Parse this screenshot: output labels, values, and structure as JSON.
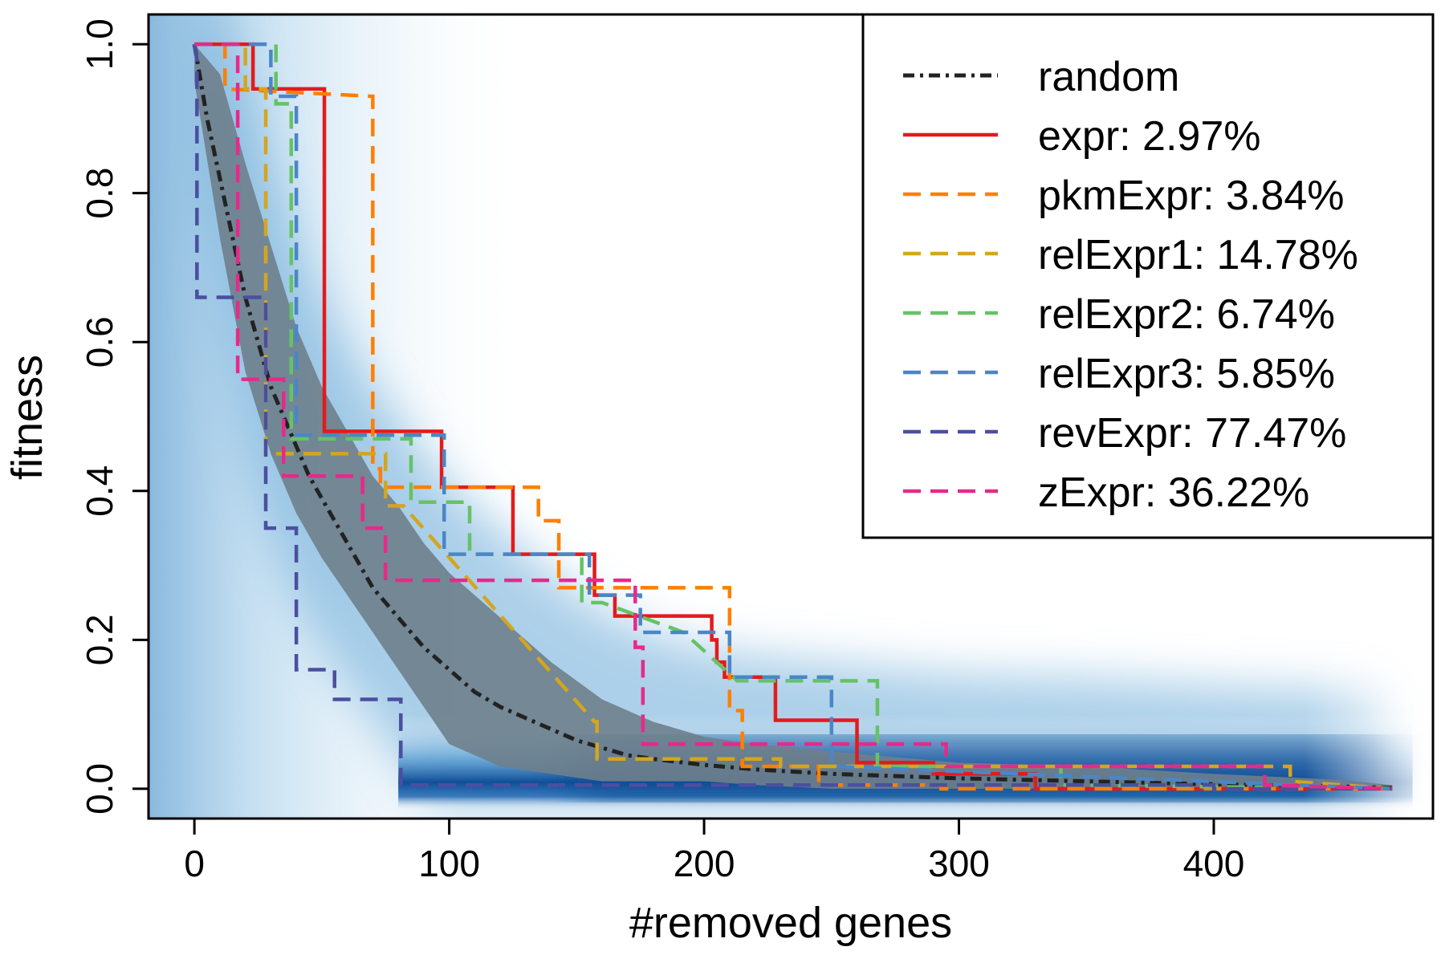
{
  "chart_data": {
    "type": "line",
    "xlabel": "#removed genes",
    "ylabel": "fitness",
    "xlim": [
      -18,
      486
    ],
    "ylim": [
      -0.04,
      1.04
    ],
    "x_ticks": [
      0,
      100,
      200,
      300,
      400
    ],
    "x_tick_labels": [
      "0",
      "100",
      "200",
      "300",
      "400"
    ],
    "y_ticks": [
      0,
      0.2,
      0.4,
      0.6,
      0.8,
      1.0
    ],
    "y_tick_labels": [
      "0.0",
      "0.2",
      "0.4",
      "0.6",
      "0.8",
      "1.0"
    ],
    "grid": false,
    "legend_position": "top-right",
    "background": "density heatmap of random removal trajectories (blue, dark near fitness 0)",
    "random_band": {
      "x": [
        0,
        10,
        20,
        30,
        40,
        50,
        60,
        70,
        80,
        90,
        100,
        120,
        140,
        160,
        180,
        200,
        220,
        250,
        300,
        350,
        400,
        450,
        470
      ],
      "lower": [
        0.95,
        0.74,
        0.56,
        0.45,
        0.37,
        0.31,
        0.26,
        0.21,
        0.16,
        0.11,
        0.06,
        0.03,
        0.02,
        0.01,
        0.01,
        0.01,
        0.005,
        0.0,
        0.0,
        0.0,
        0.0,
        0.0,
        0.0
      ],
      "upper": [
        1.0,
        0.96,
        0.84,
        0.73,
        0.62,
        0.54,
        0.48,
        0.42,
        0.38,
        0.33,
        0.29,
        0.23,
        0.17,
        0.12,
        0.09,
        0.07,
        0.06,
        0.05,
        0.035,
        0.03,
        0.02,
        0.012,
        0.005
      ]
    },
    "series": [
      {
        "name": "random",
        "color": "#222222",
        "style": "dashdot",
        "x": [
          0,
          5,
          10,
          15,
          20,
          25,
          30,
          35,
          40,
          45,
          50,
          55,
          60,
          65,
          70,
          80,
          90,
          100,
          110,
          120,
          130,
          140,
          150,
          160,
          170,
          180,
          200,
          220,
          250,
          300,
          350,
          400,
          450,
          470
        ],
        "y": [
          1.0,
          0.9,
          0.82,
          0.74,
          0.66,
          0.6,
          0.54,
          0.5,
          0.46,
          0.42,
          0.39,
          0.36,
          0.33,
          0.3,
          0.27,
          0.23,
          0.19,
          0.16,
          0.13,
          0.11,
          0.095,
          0.08,
          0.065,
          0.055,
          0.045,
          0.04,
          0.032,
          0.026,
          0.02,
          0.014,
          0.01,
          0.006,
          0.003,
          0.001
        ]
      },
      {
        "name": "expr: 2.97%",
        "color": "#e41a1c",
        "style": "solid",
        "x": [
          0,
          23,
          23,
          51,
          51,
          97,
          97,
          125,
          125,
          157,
          157,
          165,
          165,
          203,
          203,
          205,
          205,
          208,
          208,
          217,
          217,
          228,
          228,
          239,
          239,
          260,
          260,
          290,
          290,
          330,
          330,
          470
        ],
        "y": [
          1.0,
          1.0,
          0.94,
          0.94,
          0.48,
          0.48,
          0.405,
          0.405,
          0.315,
          0.315,
          0.26,
          0.26,
          0.232,
          0.232,
          0.2,
          0.2,
          0.17,
          0.17,
          0.15,
          0.15,
          0.15,
          0.15,
          0.092,
          0.092,
          0.092,
          0.092,
          0.035,
          0.035,
          0.02,
          0.02,
          0.0,
          0.0
        ]
      },
      {
        "name": "pkmExpr: 3.84%",
        "color": "#ff7f00",
        "style": "dashed",
        "x": [
          0,
          12,
          12,
          70,
          70,
          73,
          73,
          135,
          135,
          143,
          143,
          210,
          210,
          215,
          215,
          245,
          245,
          293,
          293,
          470
        ],
        "y": [
          1.0,
          1.0,
          0.94,
          0.93,
          0.43,
          0.43,
          0.405,
          0.405,
          0.36,
          0.36,
          0.27,
          0.27,
          0.105,
          0.105,
          0.03,
          0.03,
          0.005,
          0.005,
          0.0,
          0.0
        ]
      },
      {
        "name": "relExpr1: 14.78%",
        "color": "#d4a520",
        "style": "dashed",
        "x": [
          0,
          20,
          20,
          28,
          28,
          75,
          75,
          82,
          82,
          157,
          157,
          158,
          158,
          230,
          230,
          430,
          430,
          470
        ],
        "y": [
          1.0,
          1.0,
          0.94,
          0.94,
          0.45,
          0.45,
          0.38,
          0.38,
          0.38,
          0.09,
          0.09,
          0.09,
          0.04,
          0.04,
          0.03,
          0.03,
          0.01,
          0.0
        ]
      },
      {
        "name": "relExpr2: 6.74%",
        "color": "#66c266",
        "style": "dashed",
        "x": [
          0,
          32,
          32,
          38,
          38,
          85,
          85,
          108,
          108,
          152,
          152,
          160,
          160,
          192,
          192,
          213,
          213,
          268,
          268,
          340,
          340,
          470
        ],
        "y": [
          1.0,
          1.0,
          0.92,
          0.92,
          0.47,
          0.47,
          0.385,
          0.385,
          0.315,
          0.315,
          0.25,
          0.25,
          0.25,
          0.21,
          0.21,
          0.145,
          0.145,
          0.145,
          0.03,
          0.03,
          0.005,
          0.0
        ]
      },
      {
        "name": "relExpr3: 5.85%",
        "color": "#4a86c8",
        "style": "dashed",
        "x": [
          0,
          30,
          30,
          40,
          40,
          98,
          98,
          155,
          155,
          175,
          175,
          210,
          210,
          250,
          250,
          470
        ],
        "y": [
          1.0,
          1.0,
          0.93,
          0.93,
          0.475,
          0.475,
          0.315,
          0.315,
          0.26,
          0.26,
          0.21,
          0.21,
          0.15,
          0.15,
          0.03,
          0.0
        ]
      },
      {
        "name": "revExpr: 77.47%",
        "color": "#4b4fa0",
        "style": "dashed",
        "x": [
          0,
          1,
          1,
          9,
          9,
          28,
          28,
          40,
          40,
          55,
          55,
          81,
          81,
          400,
          400,
          470
        ],
        "y": [
          1.0,
          0.98,
          0.66,
          0.66,
          0.66,
          0.66,
          0.35,
          0.35,
          0.16,
          0.16,
          0.12,
          0.12,
          0.005,
          0.005,
          0.0,
          0.0
        ]
      },
      {
        "name": "zExpr: 36.22%",
        "color": "#e7298a",
        "style": "dashed",
        "x": [
          0,
          17,
          17,
          35,
          35,
          66,
          66,
          75,
          75,
          173,
          173,
          176,
          176,
          295,
          295,
          420,
          420,
          470
        ],
        "y": [
          1.0,
          1.0,
          0.55,
          0.55,
          0.42,
          0.42,
          0.35,
          0.35,
          0.28,
          0.28,
          0.19,
          0.19,
          0.06,
          0.06,
          0.03,
          0.03,
          0.005,
          0.0
        ]
      }
    ]
  }
}
